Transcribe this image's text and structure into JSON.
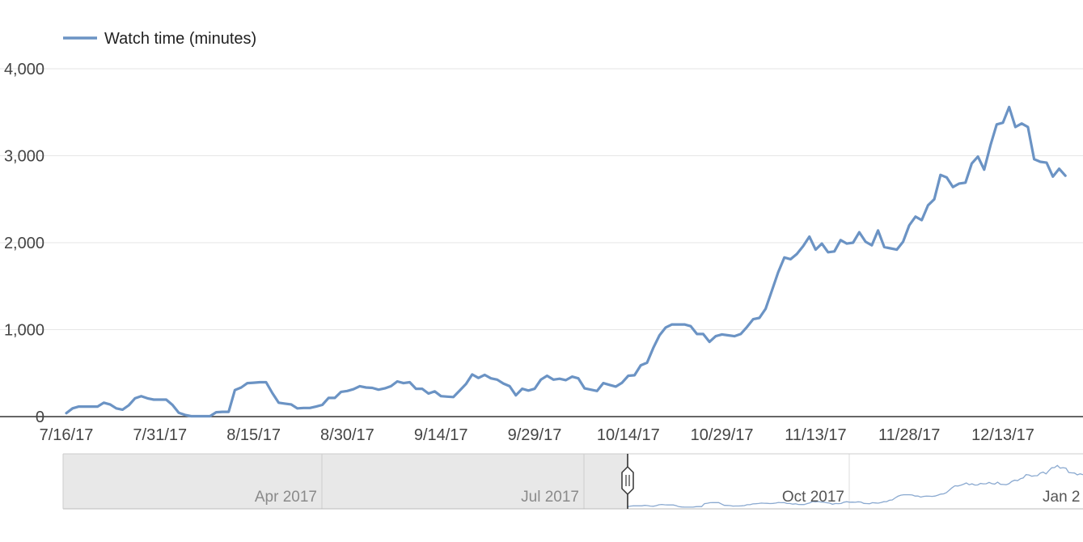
{
  "chart_data": {
    "type": "line",
    "legend": {
      "position": "top-left",
      "entries": [
        "Watch time (minutes)"
      ]
    },
    "series": [
      {
        "name": "Watch time (minutes)",
        "color": "#6b93c4",
        "start_date": "2017-07-16",
        "values": [
          40,
          95,
          115,
          115,
          115,
          115,
          160,
          140,
          95,
          80,
          130,
          210,
          235,
          210,
          195,
          195,
          195,
          135,
          45,
          20,
          5,
          5,
          5,
          5,
          50,
          55,
          55,
          305,
          335,
          385,
          390,
          395,
          395,
          270,
          160,
          150,
          140,
          95,
          100,
          100,
          115,
          135,
          215,
          215,
          285,
          295,
          315,
          350,
          335,
          330,
          310,
          325,
          350,
          405,
          385,
          395,
          320,
          320,
          265,
          290,
          235,
          230,
          225,
          300,
          375,
          485,
          445,
          480,
          440,
          425,
          380,
          350,
          245,
          320,
          300,
          320,
          425,
          470,
          425,
          435,
          420,
          460,
          440,
          325,
          310,
          295,
          385,
          365,
          345,
          390,
          470,
          475,
          590,
          620,
          790,
          935,
          1025,
          1060,
          1060,
          1060,
          1040,
          950,
          950,
          860,
          925,
          945,
          935,
          925,
          950,
          1030,
          1120,
          1135,
          1240,
          1450,
          1660,
          1830,
          1810,
          1870,
          1960,
          2070,
          1920,
          1990,
          1890,
          1900,
          2030,
          1990,
          2000,
          2120,
          2010,
          1970,
          2140,
          1950,
          1935,
          1920,
          2010,
          2200,
          2300,
          2260,
          2430,
          2500,
          2780,
          2750,
          2640,
          2680,
          2690,
          2910,
          2990,
          2840,
          3120,
          3360,
          3380,
          3560,
          3330,
          3370,
          3330,
          2960,
          2930,
          2920,
          2760,
          2850,
          2770
        ]
      }
    ],
    "x_tick_labels": [
      "7/16/17",
      "7/31/17",
      "8/15/17",
      "8/30/17",
      "9/14/17",
      "9/29/17",
      "10/14/17",
      "10/29/17",
      "11/13/17",
      "11/28/17",
      "12/13/17"
    ],
    "y_tick_labels": [
      "0",
      "1,000",
      "2,000",
      "3,000",
      "4,000"
    ],
    "ylim": [
      0,
      4000
    ],
    "grid": true,
    "navigator": {
      "labels": [
        "Apr 2017",
        "Jul 2017",
        "Oct 2017",
        "Jan 2"
      ]
    }
  }
}
